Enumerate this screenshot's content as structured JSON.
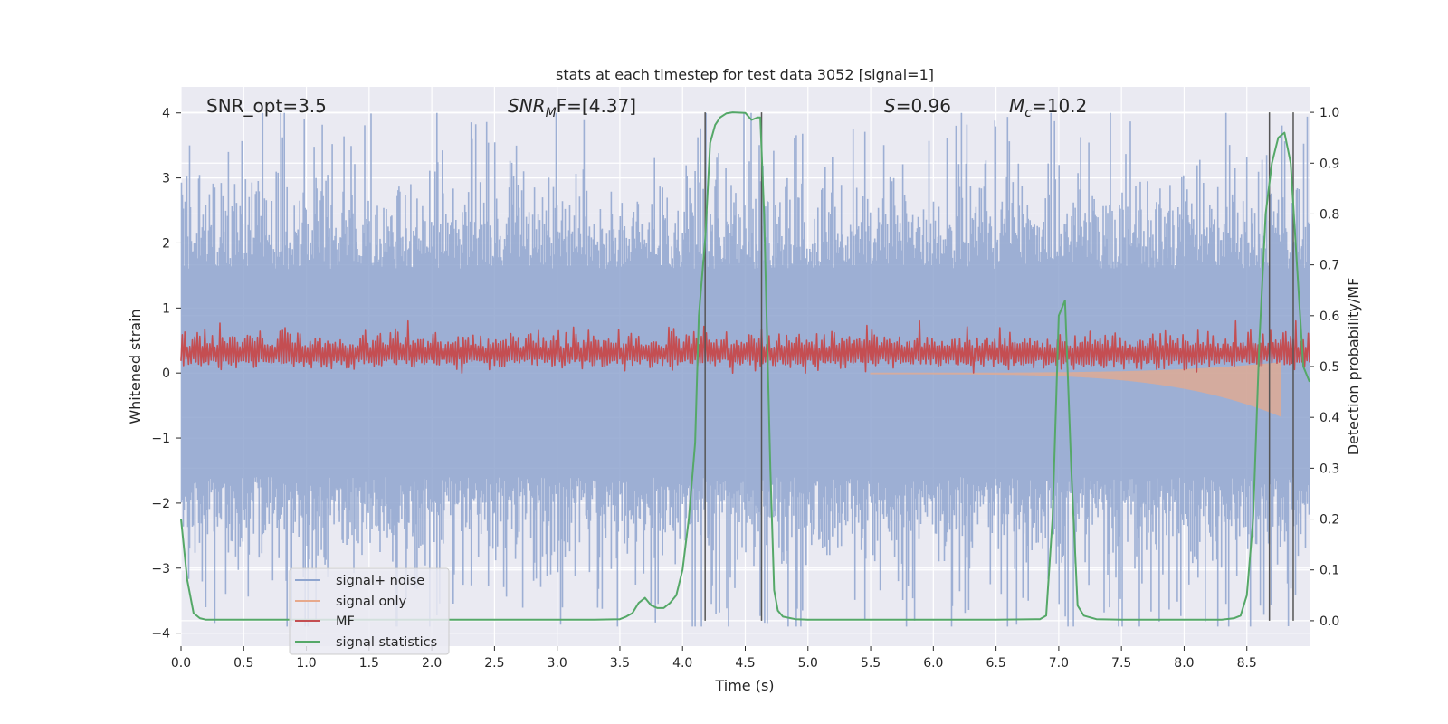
{
  "chart_data": {
    "type": "line",
    "title": "stats at each timestep for test data 3052 [signal=1]",
    "xlabel": "Time (s)",
    "ylabel_left": "Whitened strain",
    "ylabel_right": "Detection probability/MF",
    "xlim": [
      0.0,
      9.0
    ],
    "ylim_left": [
      -4.2,
      4.4
    ],
    "ylim_right": [
      -0.05,
      1.05
    ],
    "x_ticks": [
      "0.0",
      "0.5",
      "1.0",
      "1.5",
      "2.0",
      "2.5",
      "3.0",
      "3.5",
      "4.0",
      "4.5",
      "5.0",
      "5.5",
      "6.0",
      "6.5",
      "7.0",
      "7.5",
      "8.0",
      "8.5"
    ],
    "x_tick_values": [
      0.0,
      0.5,
      1.0,
      1.5,
      2.0,
      2.5,
      3.0,
      3.5,
      4.0,
      4.5,
      5.0,
      5.5,
      6.0,
      6.5,
      7.0,
      7.5,
      8.0,
      8.5
    ],
    "y_ticks_left": [
      "4",
      "3",
      "2",
      "1",
      "0",
      "−1",
      "−2",
      "−3",
      "−4"
    ],
    "y_tick_values_left": [
      4,
      3,
      2,
      1,
      0,
      -1,
      -2,
      -3,
      -4
    ],
    "y_ticks_right": [
      "1.0",
      "0.9",
      "0.8",
      "0.7",
      "0.6",
      "0.5",
      "0.4",
      "0.3",
      "0.2",
      "0.1",
      "0.0"
    ],
    "y_tick_values_right": [
      1.0,
      0.9,
      0.8,
      0.7,
      0.6,
      0.5,
      0.4,
      0.3,
      0.2,
      0.1,
      0.0
    ],
    "grid": true,
    "annotations": {
      "snr_opt": "SNR_opt=3.5",
      "snr_mf_base": "SNR",
      "snr_mf_sub": "M",
      "snr_mf_rest": "F=[4.37]",
      "s_base": "S",
      "s_rest": "=0.96",
      "mc_base": "M",
      "mc_sub": "c",
      "mc_rest": "=10.2"
    },
    "vertical_lines": [
      4.18,
      4.63,
      8.68,
      8.87
    ],
    "legend": {
      "placement": "lower-left",
      "entries": [
        {
          "label": "signal+ noise",
          "color": "#8fa5cf"
        },
        {
          "label": "signal only",
          "color": "#e7a98c"
        },
        {
          "label": "MF",
          "color": "#c44e52"
        },
        {
          "label": "signal statistics",
          "color": "#55a868"
        }
      ]
    },
    "series": [
      {
        "name": "signal statistics",
        "axis": "right",
        "color": "#55a868",
        "x": [
          0.0,
          0.05,
          0.1,
          0.15,
          0.2,
          0.5,
          1.0,
          1.5,
          2.0,
          2.5,
          3.0,
          3.3,
          3.5,
          3.55,
          3.6,
          3.65,
          3.7,
          3.75,
          3.8,
          3.85,
          3.9,
          3.95,
          4.0,
          4.05,
          4.1,
          4.13,
          4.18,
          4.22,
          4.26,
          4.3,
          4.35,
          4.4,
          4.5,
          4.55,
          4.6,
          4.62,
          4.65,
          4.7,
          4.73,
          4.76,
          4.8,
          4.9,
          5.0,
          5.5,
          6.0,
          6.5,
          6.85,
          6.9,
          6.95,
          7.0,
          7.05,
          7.1,
          7.15,
          7.2,
          7.3,
          7.5,
          8.0,
          8.3,
          8.4,
          8.45,
          8.5,
          8.55,
          8.6,
          8.65,
          8.7,
          8.75,
          8.8,
          8.85,
          8.9,
          8.95,
          9.0
        ],
        "y": [
          0.2,
          0.08,
          0.015,
          0.005,
          0.002,
          0.002,
          0.002,
          0.002,
          0.002,
          0.002,
          0.002,
          0.002,
          0.003,
          0.008,
          0.015,
          0.035,
          0.045,
          0.03,
          0.025,
          0.025,
          0.035,
          0.05,
          0.1,
          0.2,
          0.35,
          0.6,
          0.75,
          0.94,
          0.975,
          0.99,
          0.998,
          1.0,
          0.999,
          0.985,
          0.99,
          0.99,
          0.8,
          0.3,
          0.06,
          0.02,
          0.008,
          0.003,
          0.002,
          0.002,
          0.002,
          0.002,
          0.003,
          0.01,
          0.2,
          0.6,
          0.63,
          0.3,
          0.03,
          0.01,
          0.003,
          0.002,
          0.002,
          0.002,
          0.005,
          0.01,
          0.05,
          0.2,
          0.55,
          0.8,
          0.9,
          0.95,
          0.96,
          0.9,
          0.7,
          0.5,
          0.47
        ]
      },
      {
        "name": "signal+ noise",
        "axis": "left",
        "color": "#8fa5cf",
        "description_range": [
          -3.9,
          4.0
        ]
      },
      {
        "name": "MF",
        "axis": "left",
        "color": "#c44e52",
        "description_range": [
          0.0,
          0.8
        ]
      },
      {
        "name": "signal only",
        "axis": "left",
        "color": "#e7a98c",
        "description_range": [
          -0.65,
          0.0
        ]
      }
    ]
  }
}
